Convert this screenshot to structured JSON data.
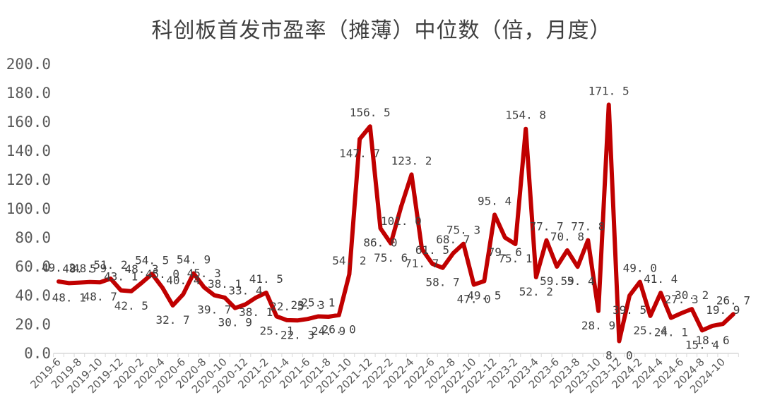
{
  "chart_data": {
    "type": "line",
    "title": "科创板首发市盈率（摊薄）中位数（倍，月度）",
    "xlabel": "",
    "ylabel": "",
    "ylim": [
      0,
      200
    ],
    "yticks": [
      "0.0",
      "20.0",
      "40.0",
      "60.0",
      "80.0",
      "100.0",
      "120.0",
      "140.0",
      "160.0",
      "180.0",
      "200.0"
    ],
    "grid": false,
    "legend": null,
    "line_color": "#C00000",
    "x": [
      "2019-6",
      "2019-7",
      "2019-8",
      "2019-9",
      "2019-10",
      "2019-11",
      "2019-12",
      "2020-1",
      "2020-2",
      "2020-3",
      "2020-4",
      "2020-5",
      "2020-6",
      "2020-7",
      "2020-8",
      "2020-9",
      "2020-10",
      "2020-11",
      "2020-12",
      "2021-1",
      "2021-2",
      "2021-3",
      "2021-4",
      "2021-5",
      "2021-6",
      "2021-7",
      "2021-8",
      "2021-9",
      "2021-10",
      "2021-11",
      "2021-12",
      "2022-1",
      "2022-2",
      "2022-3",
      "2022-4",
      "2022-5",
      "2022-6",
      "2022-7",
      "2022-8",
      "2022-9",
      "2022-10",
      "2022-11",
      "2022-12",
      "2023-1",
      "2023-2",
      "2023-3",
      "2023-4",
      "2023-5",
      "2023-6",
      "2023-7",
      "2023-8",
      "2023-9",
      "2023-10",
      "2023-11",
      "2023-12",
      "2024-1",
      "2024-2",
      "2024-3",
      "2024-4",
      "2024-5",
      "2024-6",
      "2024-7",
      "2024-8",
      "2024-9",
      "2024-10",
      "2024-11"
    ],
    "xtick_labels": [
      "2019-6",
      "2019-8",
      "2019-10",
      "2019-12",
      "2020-2",
      "2020-4",
      "2020-6",
      "2020-8",
      "2020-10",
      "2020-12",
      "2021-2",
      "2021-4",
      "2021-6",
      "2021-8",
      "2021-10",
      "2021-12",
      "2022-2",
      "2022-4",
      "2022-6",
      "2022-8",
      "2022-10",
      "2022-12",
      "2023-2",
      "2023-4",
      "2023-6",
      "2023-8",
      "2023-10",
      "2023-12",
      "2024-2",
      "2024-4",
      "2024-6",
      "2024-8",
      "2024-10"
    ],
    "series": [
      {
        "name": "首发市盈率（摊薄）中位数",
        "values": [
          49.2,
          48.1,
          48.5,
          48.9,
          48.7,
          51.2,
          43.1,
          42.5,
          48.3,
          54.5,
          45.0,
          32.7,
          40.4,
          54.9,
          45.3,
          39.7,
          38.1,
          30.9,
          33.4,
          38.1,
          41.5,
          25.1,
          22.5,
          22.3,
          23.3,
          25.1,
          24.9,
          26.0,
          54.2,
          147.7,
          156.5,
          86.0,
          75.6,
          101.0,
          123.2,
          71.7,
          61.5,
          58.7,
          68.7,
          75.3,
          47.0,
          49.5,
          95.4,
          79.6,
          75.1,
          154.8,
          52.2,
          77.7,
          59.5,
          70.8,
          59.4,
          77.8,
          28.9,
          171.5,
          8.0,
          39.5,
          49.0,
          25.4,
          41.4,
          24.1,
          27.3,
          30.2,
          15.4,
          18.6,
          19.9,
          26.7
        ]
      }
    ]
  }
}
